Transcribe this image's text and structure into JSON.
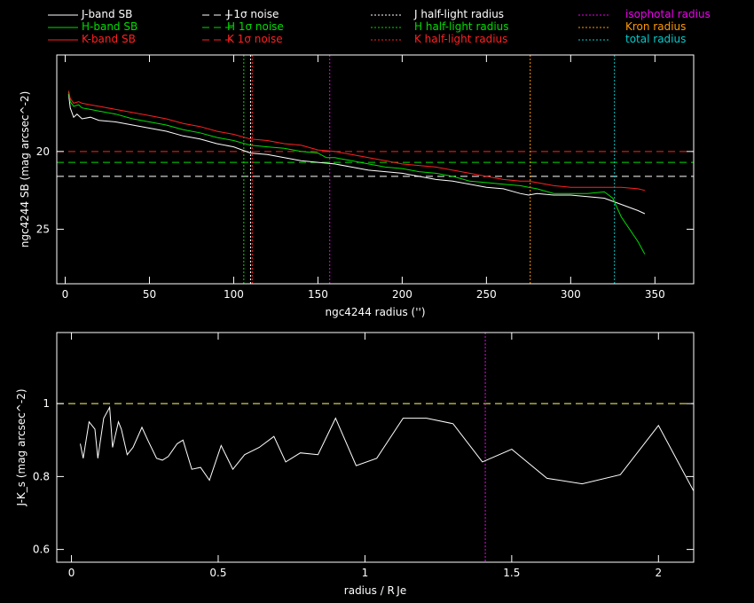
{
  "colors": {
    "J": "#ffffff",
    "H": "#00dd00",
    "K": "#ff2020",
    "isophotal": "#ee00ee",
    "kron": "#ff9900",
    "total": "#00cccc",
    "axis": "#ffffff",
    "color_ref": "#ffff66"
  },
  "legend": [
    {
      "label": "J-band SB",
      "color": "#ffffff",
      "style": "solid"
    },
    {
      "label": "H-band SB",
      "color": "#00dd00",
      "style": "solid"
    },
    {
      "label": "K-band SB",
      "color": "#ff2020",
      "style": "solid"
    },
    {
      "label": "J 1σ noise",
      "color": "#ffffff",
      "style": "dashed"
    },
    {
      "label": "H 1σ noise",
      "color": "#00dd00",
      "style": "dashed"
    },
    {
      "label": "K 1σ noise",
      "color": "#ff2020",
      "style": "dashed"
    },
    {
      "label": "J half-light radius",
      "color": "#ffffff",
      "style": "dotted"
    },
    {
      "label": "H half-light radius",
      "color": "#00dd00",
      "style": "dotted"
    },
    {
      "label": "K half-light radius",
      "color": "#ff2020",
      "style": "dotted"
    },
    {
      "label": "isophotal radius",
      "color": "#ee00ee",
      "style": "dotted"
    },
    {
      "label": "Kron radius",
      "color": "#ff9900",
      "style": "dotted"
    },
    {
      "label": "total radius",
      "color": "#00cccc",
      "style": "dotted"
    }
  ],
  "chart_data": [
    {
      "type": "line",
      "xlabel": "ngc4244 radius ('')",
      "ylabel": "ngc4244 SB (mag arcsec^-2)",
      "xlim": [
        -5,
        373
      ],
      "ylim": [
        28.5,
        13.8
      ],
      "xticks": [
        0,
        50,
        100,
        150,
        200,
        250,
        300,
        350
      ],
      "yticks": [
        20,
        25
      ],
      "series": [
        {
          "name": "J-band SB",
          "color": "#ffffff",
          "x": [
            2,
            3,
            5,
            7,
            10,
            15,
            20,
            30,
            40,
            50,
            60,
            70,
            80,
            90,
            100,
            110,
            120,
            130,
            140,
            150,
            160,
            170,
            180,
            190,
            200,
            210,
            220,
            230,
            240,
            250,
            260,
            270,
            275,
            280,
            290,
            300,
            310,
            320,
            325,
            330,
            340,
            344
          ],
          "y": [
            16.3,
            17.2,
            17.8,
            17.6,
            17.9,
            17.8,
            18.0,
            18.1,
            18.3,
            18.5,
            18.7,
            19.0,
            19.2,
            19.5,
            19.7,
            20.1,
            20.2,
            20.4,
            20.6,
            20.7,
            20.8,
            21.0,
            21.2,
            21.3,
            21.4,
            21.6,
            21.8,
            21.9,
            22.1,
            22.3,
            22.4,
            22.7,
            22.8,
            22.7,
            22.8,
            22.8,
            22.9,
            23.0,
            23.2,
            23.4,
            23.8,
            24.0
          ]
        },
        {
          "name": "H-band SB",
          "color": "#00dd00",
          "x": [
            2,
            3,
            5,
            8,
            10,
            15,
            20,
            30,
            40,
            50,
            60,
            70,
            80,
            90,
            100,
            110,
            120,
            130,
            140,
            150,
            155,
            160,
            170,
            180,
            190,
            200,
            210,
            220,
            230,
            240,
            250,
            260,
            270,
            275,
            280,
            290,
            300,
            310,
            320,
            325,
            330,
            340,
            344
          ],
          "y": [
            16.2,
            16.8,
            17.1,
            17.0,
            17.2,
            17.3,
            17.4,
            17.6,
            17.9,
            18.1,
            18.3,
            18.6,
            18.8,
            19.1,
            19.3,
            19.6,
            19.7,
            19.8,
            20.0,
            20.1,
            20.4,
            20.4,
            20.6,
            20.8,
            21.0,
            21.1,
            21.3,
            21.4,
            21.6,
            21.9,
            22.0,
            22.1,
            22.2,
            22.3,
            22.4,
            22.7,
            22.7,
            22.7,
            22.6,
            23.0,
            24.2,
            25.8,
            26.6
          ]
        },
        {
          "name": "K-band SB",
          "color": "#ff2020",
          "x": [
            2,
            3,
            5,
            8,
            10,
            15,
            20,
            30,
            40,
            50,
            60,
            70,
            80,
            90,
            100,
            110,
            120,
            130,
            140,
            150,
            160,
            170,
            180,
            190,
            200,
            210,
            220,
            230,
            240,
            250,
            260,
            270,
            275,
            280,
            290,
            300,
            310,
            320,
            330,
            340,
            344
          ],
          "y": [
            16.1,
            16.6,
            16.9,
            16.8,
            16.9,
            17.0,
            17.1,
            17.3,
            17.5,
            17.7,
            17.9,
            18.2,
            18.4,
            18.7,
            18.9,
            19.2,
            19.3,
            19.5,
            19.6,
            19.9,
            20.0,
            20.2,
            20.4,
            20.6,
            20.8,
            20.9,
            21.0,
            21.2,
            21.4,
            21.6,
            21.8,
            21.9,
            21.9,
            22.0,
            22.2,
            22.3,
            22.3,
            22.3,
            22.3,
            22.4,
            22.5
          ]
        }
      ],
      "hlines": [
        {
          "label": "J 1σ noise",
          "y": 21.6,
          "color": "#ffffff",
          "style": "dashed"
        },
        {
          "label": "H 1σ noise",
          "y": 20.7,
          "color": "#00dd00",
          "style": "dashed"
        },
        {
          "label": "K 1σ noise",
          "y": 20.0,
          "color": "#ff2020",
          "style": "dashed"
        }
      ],
      "vlines": [
        {
          "label": "J half-light radius",
          "x": 110,
          "color": "#ffffff",
          "style": "dotted"
        },
        {
          "label": "H half-light radius",
          "x": 106,
          "color": "#00dd00",
          "style": "dotted"
        },
        {
          "label": "K half-light radius",
          "x": 111,
          "color": "#ff2020",
          "style": "dotted"
        },
        {
          "label": "isophotal radius",
          "x": 157,
          "color": "#ee00ee",
          "style": "dotted"
        },
        {
          "label": "Kron radius",
          "x": 276,
          "color": "#ff9900",
          "style": "dotted"
        },
        {
          "label": "total radius",
          "x": 326,
          "color": "#00cccc",
          "style": "dotted"
        }
      ]
    },
    {
      "type": "line",
      "xlabel": "radius / R_Je",
      "ylabel": "J-K_s (mag arcsec^-2)",
      "xlim": [
        -0.05,
        2.12
      ],
      "ylim": [
        0.565,
        1.195
      ],
      "xticks": [
        0,
        0.5,
        1,
        1.5,
        2
      ],
      "xtick_labels": [
        "0",
        "0.5",
        "1",
        "1.5",
        "2"
      ],
      "yticks": [
        0.6,
        0.8,
        1
      ],
      "ytick_labels": [
        "0.6",
        "0.8",
        "1"
      ],
      "series": [
        {
          "name": "J-K",
          "color": "#ffffff",
          "x": [
            0.03,
            0.04,
            0.06,
            0.08,
            0.09,
            0.11,
            0.13,
            0.14,
            0.16,
            0.17,
            0.19,
            0.21,
            0.24,
            0.26,
            0.29,
            0.31,
            0.33,
            0.36,
            0.38,
            0.41,
            0.44,
            0.47,
            0.51,
            0.55,
            0.59,
            0.64,
            0.69,
            0.73,
            0.78,
            0.84,
            0.9,
            0.97,
            1.04,
            1.13,
            1.21,
            1.3,
            1.4,
            1.5,
            1.62,
            1.74,
            1.87,
            2.0,
            2.12
          ],
          "y": [
            0.89,
            0.85,
            0.95,
            0.93,
            0.85,
            0.96,
            0.99,
            0.88,
            0.95,
            0.93,
            0.86,
            0.88,
            0.935,
            0.9,
            0.85,
            0.845,
            0.855,
            0.89,
            0.9,
            0.82,
            0.825,
            0.79,
            0.885,
            0.82,
            0.86,
            0.88,
            0.91,
            0.84,
            0.865,
            0.86,
            0.96,
            0.83,
            0.85,
            0.96,
            0.96,
            0.945,
            0.84,
            0.875,
            0.795,
            0.78,
            0.805,
            0.94,
            0.76
          ]
        }
      ],
      "hlines": [
        {
          "label": "",
          "y": 1.0,
          "color": "#ffff66",
          "style": "dashed"
        }
      ],
      "vlines": [
        {
          "label": "isophotal radius",
          "x": 1.41,
          "color": "#ee00ee",
          "style": "dotted"
        }
      ]
    }
  ]
}
